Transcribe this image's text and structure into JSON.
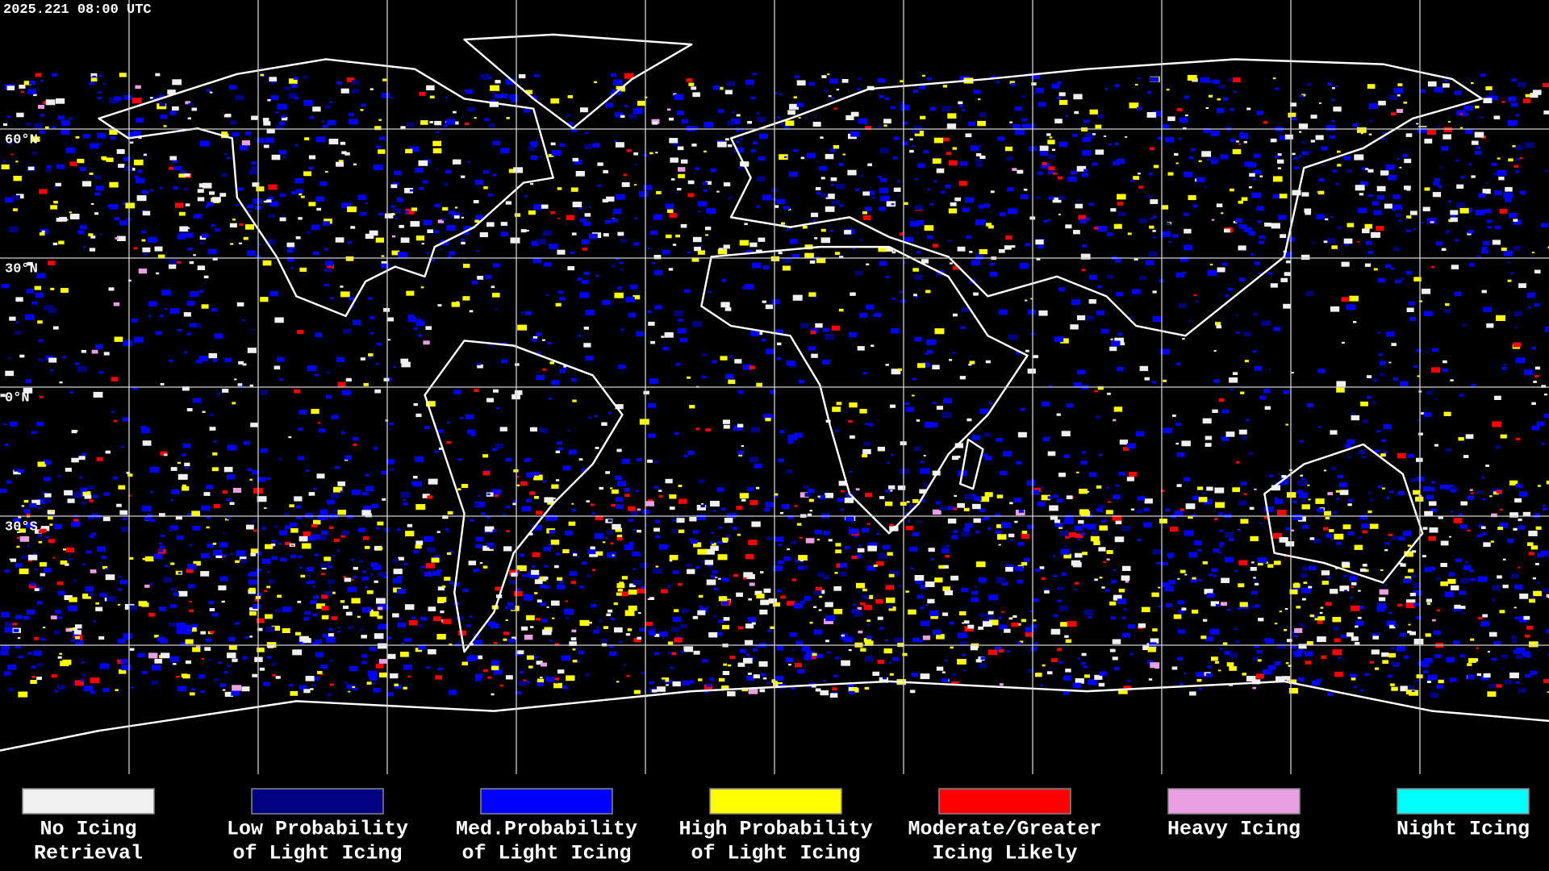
{
  "timestamp": "2025.221 08:00 UTC",
  "latitude_labels": [
    "60°N",
    "30°N",
    "0°N",
    "30°S"
  ],
  "legend": [
    {
      "label": [
        "No Icing",
        "Retrieval"
      ],
      "color": "#f0f0f0"
    },
    {
      "label": [
        "Low Probability",
        "of Light Icing"
      ],
      "color": "#000080"
    },
    {
      "label": [
        "Med.Probability",
        "of Light Icing"
      ],
      "color": "#0000ff"
    },
    {
      "label": [
        "High Probability",
        "of Light Icing"
      ],
      "color": "#ffff00"
    },
    {
      "label": [
        "Moderate/Greater",
        "Icing Likely"
      ],
      "color": "#ff0000"
    },
    {
      "label": [
        "Heavy Icing"
      ],
      "color": "#e8a0e0"
    },
    {
      "label": [
        "Night Icing"
      ],
      "color": "#00ffff"
    }
  ]
}
